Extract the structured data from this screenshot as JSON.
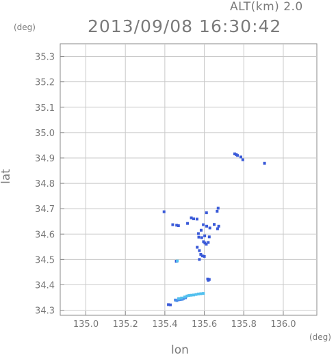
{
  "header": {
    "altitude_label": "ALT(km) 2.0",
    "timestamp": "2013/09/08 16:30:42"
  },
  "axes": {
    "y_unit": "(deg)",
    "x_unit": "(deg)",
    "x_label": "lon",
    "y_label": "lat"
  },
  "chart_data": {
    "type": "scatter",
    "title": "2013/09/08 16:30:42",
    "subtitle": "ALT(km) 2.0",
    "xlabel": "lon",
    "ylabel": "lat",
    "xlim": [
      134.87,
      136.17
    ],
    "ylim": [
      34.28,
      35.35
    ],
    "xticks": [
      "135.0",
      "135.2",
      "135.4",
      "135.6",
      "135.8",
      "136.0"
    ],
    "yticks": [
      "34.3",
      "34.4",
      "34.5",
      "34.6",
      "34.7",
      "34.8",
      "34.9",
      "35.0",
      "35.1",
      "35.2",
      "35.3"
    ],
    "grid": true,
    "colors": {
      "dark": "#3a5ad8",
      "mid": "#4a8ce8",
      "light": "#52c0ee",
      "grid": "#c8c8c8",
      "axis": "#888888"
    },
    "series": [
      {
        "color_key": "dark",
        "points": [
          [
            135.754,
            34.916
          ],
          [
            135.762,
            34.913
          ],
          [
            135.768,
            34.91
          ],
          [
            135.785,
            34.904
          ],
          [
            135.795,
            34.893
          ],
          [
            135.905,
            34.879
          ],
          [
            135.396,
            34.688
          ],
          [
            135.67,
            34.702
          ],
          [
            135.665,
            34.69
          ],
          [
            135.44,
            34.637
          ],
          [
            135.46,
            34.635
          ],
          [
            135.469,
            34.633
          ],
          [
            135.534,
            34.664
          ],
          [
            135.546,
            34.66
          ],
          [
            135.563,
            34.659
          ],
          [
            135.611,
            34.684
          ],
          [
            135.515,
            34.642
          ],
          [
            135.595,
            34.637
          ],
          [
            135.612,
            34.631
          ],
          [
            135.628,
            34.624
          ],
          [
            135.65,
            34.638
          ],
          [
            135.673,
            34.631
          ],
          [
            135.667,
            34.621
          ],
          [
            135.584,
            34.615
          ],
          [
            135.57,
            34.602
          ],
          [
            135.572,
            34.588
          ],
          [
            135.587,
            34.586
          ],
          [
            135.602,
            34.593
          ],
          [
            135.625,
            34.589
          ],
          [
            135.596,
            34.57
          ],
          [
            135.603,
            34.565
          ],
          [
            135.61,
            34.56
          ],
          [
            135.62,
            34.567
          ],
          [
            135.564,
            34.548
          ],
          [
            135.575,
            34.535
          ],
          [
            135.582,
            34.52
          ],
          [
            135.59,
            34.514
          ],
          [
            135.6,
            34.512
          ],
          [
            135.575,
            34.5
          ],
          [
            135.617,
            34.423
          ],
          [
            135.625,
            34.421
          ],
          [
            135.62,
            34.418
          ],
          [
            135.458,
            34.493
          ],
          [
            135.418,
            34.322
          ],
          [
            135.428,
            34.321
          ]
        ]
      },
      {
        "color_key": "mid",
        "points": [
          [
            135.453,
            34.34
          ],
          [
            135.461,
            34.338
          ],
          [
            135.469,
            34.341
          ],
          [
            135.478,
            34.342
          ],
          [
            135.488,
            34.343
          ],
          [
            135.495,
            34.346
          ],
          [
            135.505,
            34.349
          ]
        ]
      },
      {
        "color_key": "light",
        "points": [
          [
            135.47,
            34.346
          ],
          [
            135.484,
            34.348
          ],
          [
            135.5,
            34.352
          ],
          [
            135.512,
            34.356
          ],
          [
            135.522,
            34.358
          ],
          [
            135.533,
            34.359
          ],
          [
            135.546,
            34.36
          ],
          [
            135.558,
            34.362
          ],
          [
            135.57,
            34.364
          ],
          [
            135.582,
            34.365
          ],
          [
            135.595,
            34.366
          ],
          [
            135.463,
            34.494
          ]
        ]
      }
    ]
  }
}
